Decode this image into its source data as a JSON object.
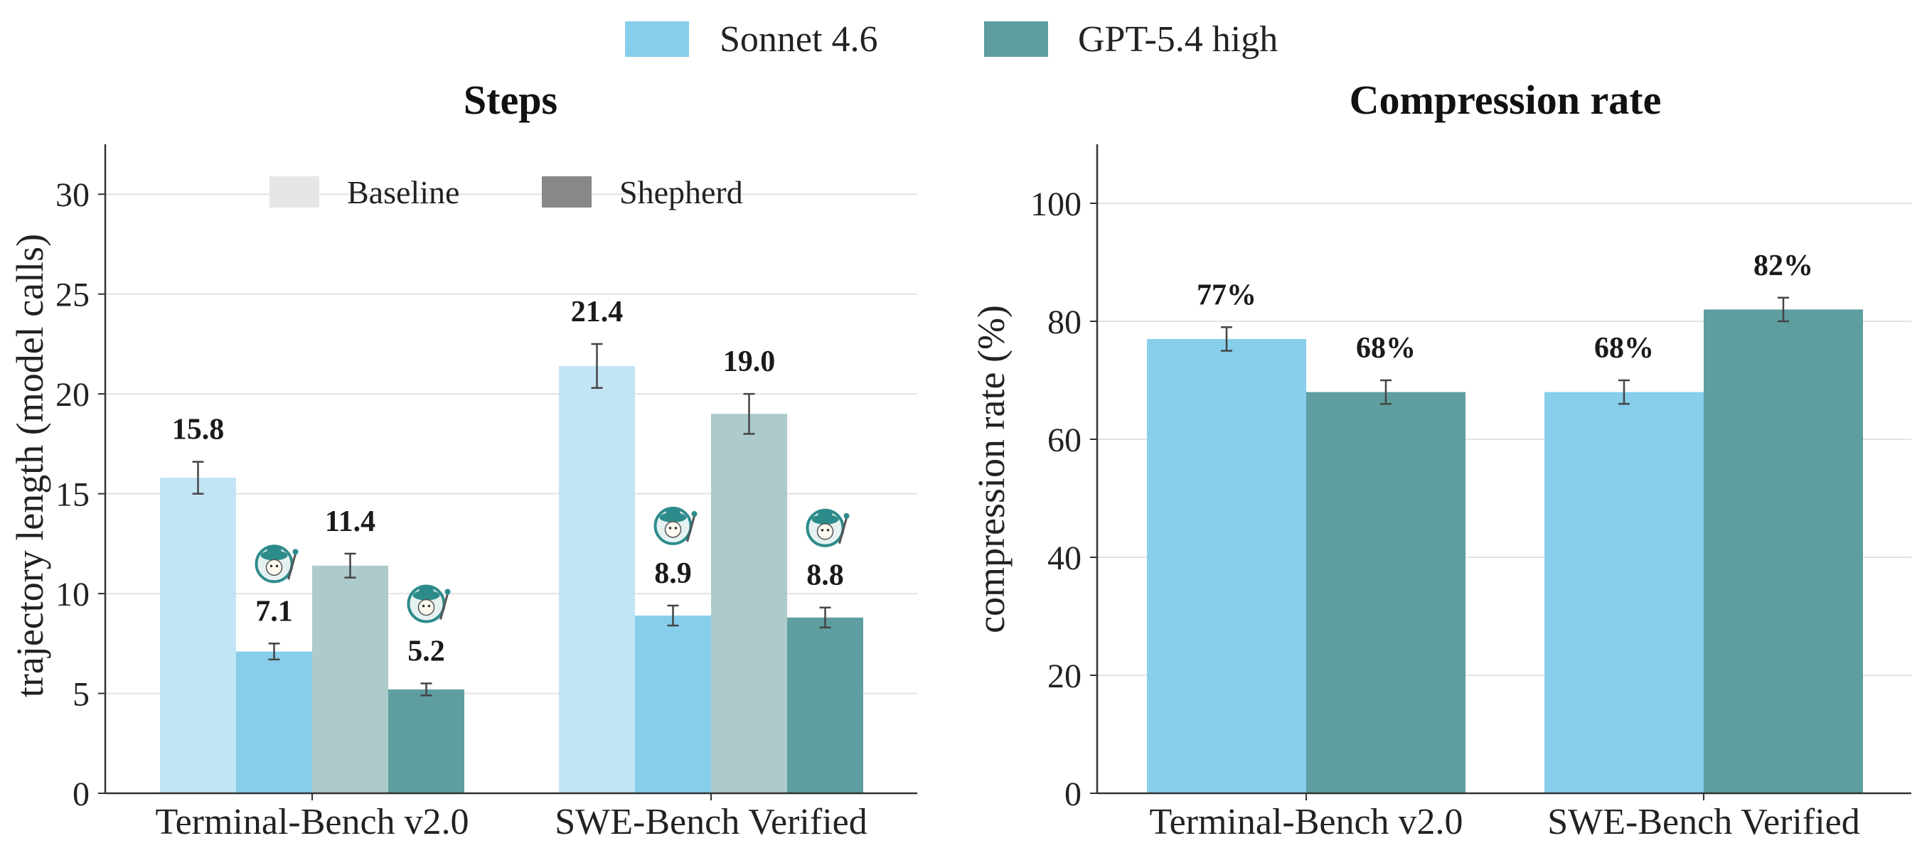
{
  "legend": {
    "models": [
      {
        "name": "Sonnet 4.6",
        "color": "#87CEEB"
      },
      {
        "name": "GPT-5.4 high",
        "color": "#5F9EA0"
      }
    ]
  },
  "chart_data": [
    {
      "type": "bar",
      "title": "Steps",
      "ylabel": "trajectory length (model calls)",
      "xlabel": "",
      "ylim": [
        0,
        32.5
      ],
      "yticks": [
        0,
        5,
        10,
        15,
        20,
        25,
        30
      ],
      "grid": true,
      "categories": [
        "Terminal-Bench v2.0",
        "SWE-Bench Verified"
      ],
      "inner_legend": {
        "placement": "top-center",
        "items": [
          {
            "name": "Baseline",
            "color": "#e6e6e6"
          },
          {
            "name": "Shepherd",
            "color": "#888888"
          }
        ]
      },
      "series": [
        {
          "model": "Sonnet 4.6",
          "variant": "Baseline",
          "color": "#C2E5F5",
          "values": [
            15.8,
            21.4
          ],
          "errors": [
            0.8,
            1.1
          ],
          "labels": [
            "15.8",
            "21.4"
          ],
          "icon": false
        },
        {
          "model": "Sonnet 4.6",
          "variant": "Shepherd",
          "color": "#87CEEB",
          "values": [
            7.1,
            8.9
          ],
          "errors": [
            0.4,
            0.5
          ],
          "labels": [
            "7.1",
            "8.9"
          ],
          "icon": true
        },
        {
          "model": "GPT-5.4 high",
          "variant": "Baseline",
          "color": "#AECBCC",
          "values": [
            11.4,
            19.0
          ],
          "errors": [
            0.6,
            1.0
          ],
          "labels": [
            "11.4",
            "19.0"
          ],
          "icon": false
        },
        {
          "model": "GPT-5.4 high",
          "variant": "Shepherd",
          "color": "#5F9EA0",
          "values": [
            5.2,
            8.8
          ],
          "errors": [
            0.3,
            0.5
          ],
          "labels": [
            "5.2",
            "8.8"
          ],
          "icon": true
        }
      ]
    },
    {
      "type": "bar",
      "title": "Compression rate",
      "ylabel": "compression rate (%)",
      "xlabel": "",
      "ylim": [
        0,
        110
      ],
      "yticks": [
        0,
        20,
        40,
        60,
        80,
        100
      ],
      "grid": true,
      "categories": [
        "Terminal-Bench v2.0",
        "SWE-Bench Verified"
      ],
      "series": [
        {
          "name": "Sonnet 4.6",
          "color": "#87CEEB",
          "values": [
            77,
            68
          ],
          "errors": [
            2,
            2
          ],
          "labels": [
            "77%",
            "68%"
          ]
        },
        {
          "name": "GPT-5.4 high",
          "color": "#5F9EA0",
          "values": [
            68,
            82
          ],
          "errors": [
            2,
            2
          ],
          "labels": [
            "68%",
            "82%"
          ]
        }
      ]
    }
  ]
}
